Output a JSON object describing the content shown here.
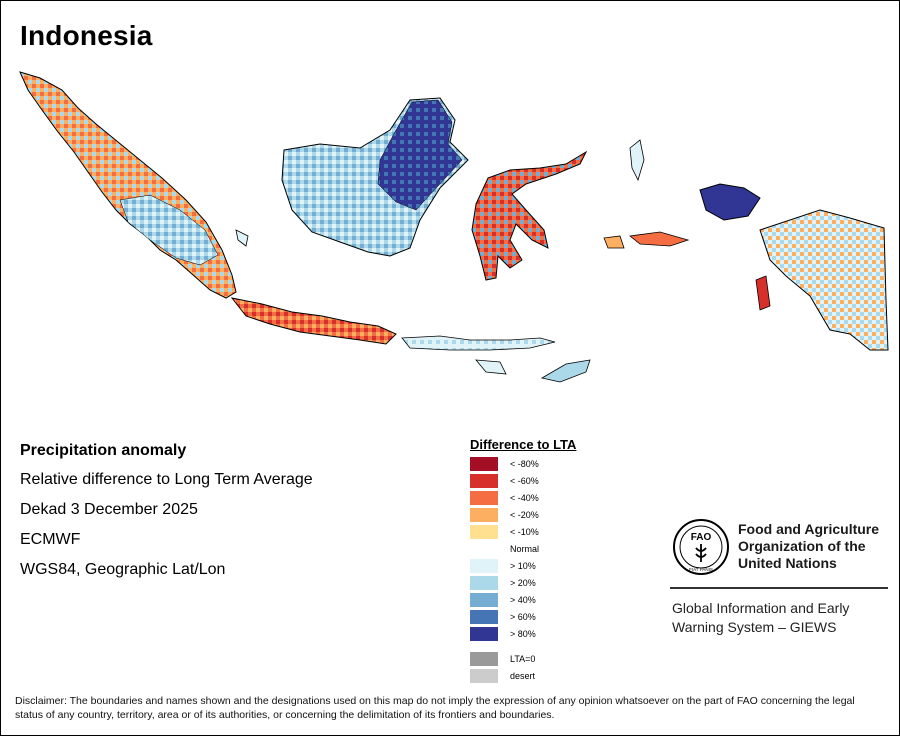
{
  "title": "Indonesia",
  "map": {
    "description_labels": [],
    "land_colors": {
      "normal": "#ffffff",
      "outline": "#000000"
    }
  },
  "info": {
    "heading": "Precipitation anomaly",
    "lines": [
      "Relative difference to Long Term Average",
      "Dekad 3 December 2025",
      "ECMWF",
      "WGS84, Geographic Lat/Lon"
    ]
  },
  "legend": {
    "title": "Difference to LTA",
    "dry": [
      {
        "label": "< -80%",
        "color": "#a50f26"
      },
      {
        "label": "< -60%",
        "color": "#d7302a"
      },
      {
        "label": "< -40%",
        "color": "#f46d43"
      },
      {
        "label": "< -20%",
        "color": "#fcae61"
      },
      {
        "label": "< -10%",
        "color": "#fee090"
      }
    ],
    "normal_label": "Normal",
    "wet": [
      {
        "label": "> 10%",
        "color": "#e0f3f8"
      },
      {
        "label": "> 20%",
        "color": "#abd9e9"
      },
      {
        "label": "> 40%",
        "color": "#74add1"
      },
      {
        "label": "> 60%",
        "color": "#4575b4"
      },
      {
        "label": "> 80%",
        "color": "#313695"
      }
    ],
    "other": [
      {
        "label": "LTA=0",
        "color": "#9a9a9a"
      },
      {
        "label": "desert",
        "color": "#cccccc"
      }
    ]
  },
  "org": {
    "logo_text": "FAO",
    "logo_motto": "FIAT PANIS",
    "name_lines": [
      "Food and Agriculture",
      "Organization of the",
      "United Nations"
    ],
    "giews_lines": [
      "Global Information and Early",
      "Warning System – GIEWS"
    ]
  },
  "disclaimer": "Disclaimer: The boundaries and names shown and the designations used on this map do not imply the expression of any opinion whatsoever on the part of FAO concerning the legal status of any country, territory, area or of its authorities, or concerning the delimitation of its frontiers and boundaries."
}
